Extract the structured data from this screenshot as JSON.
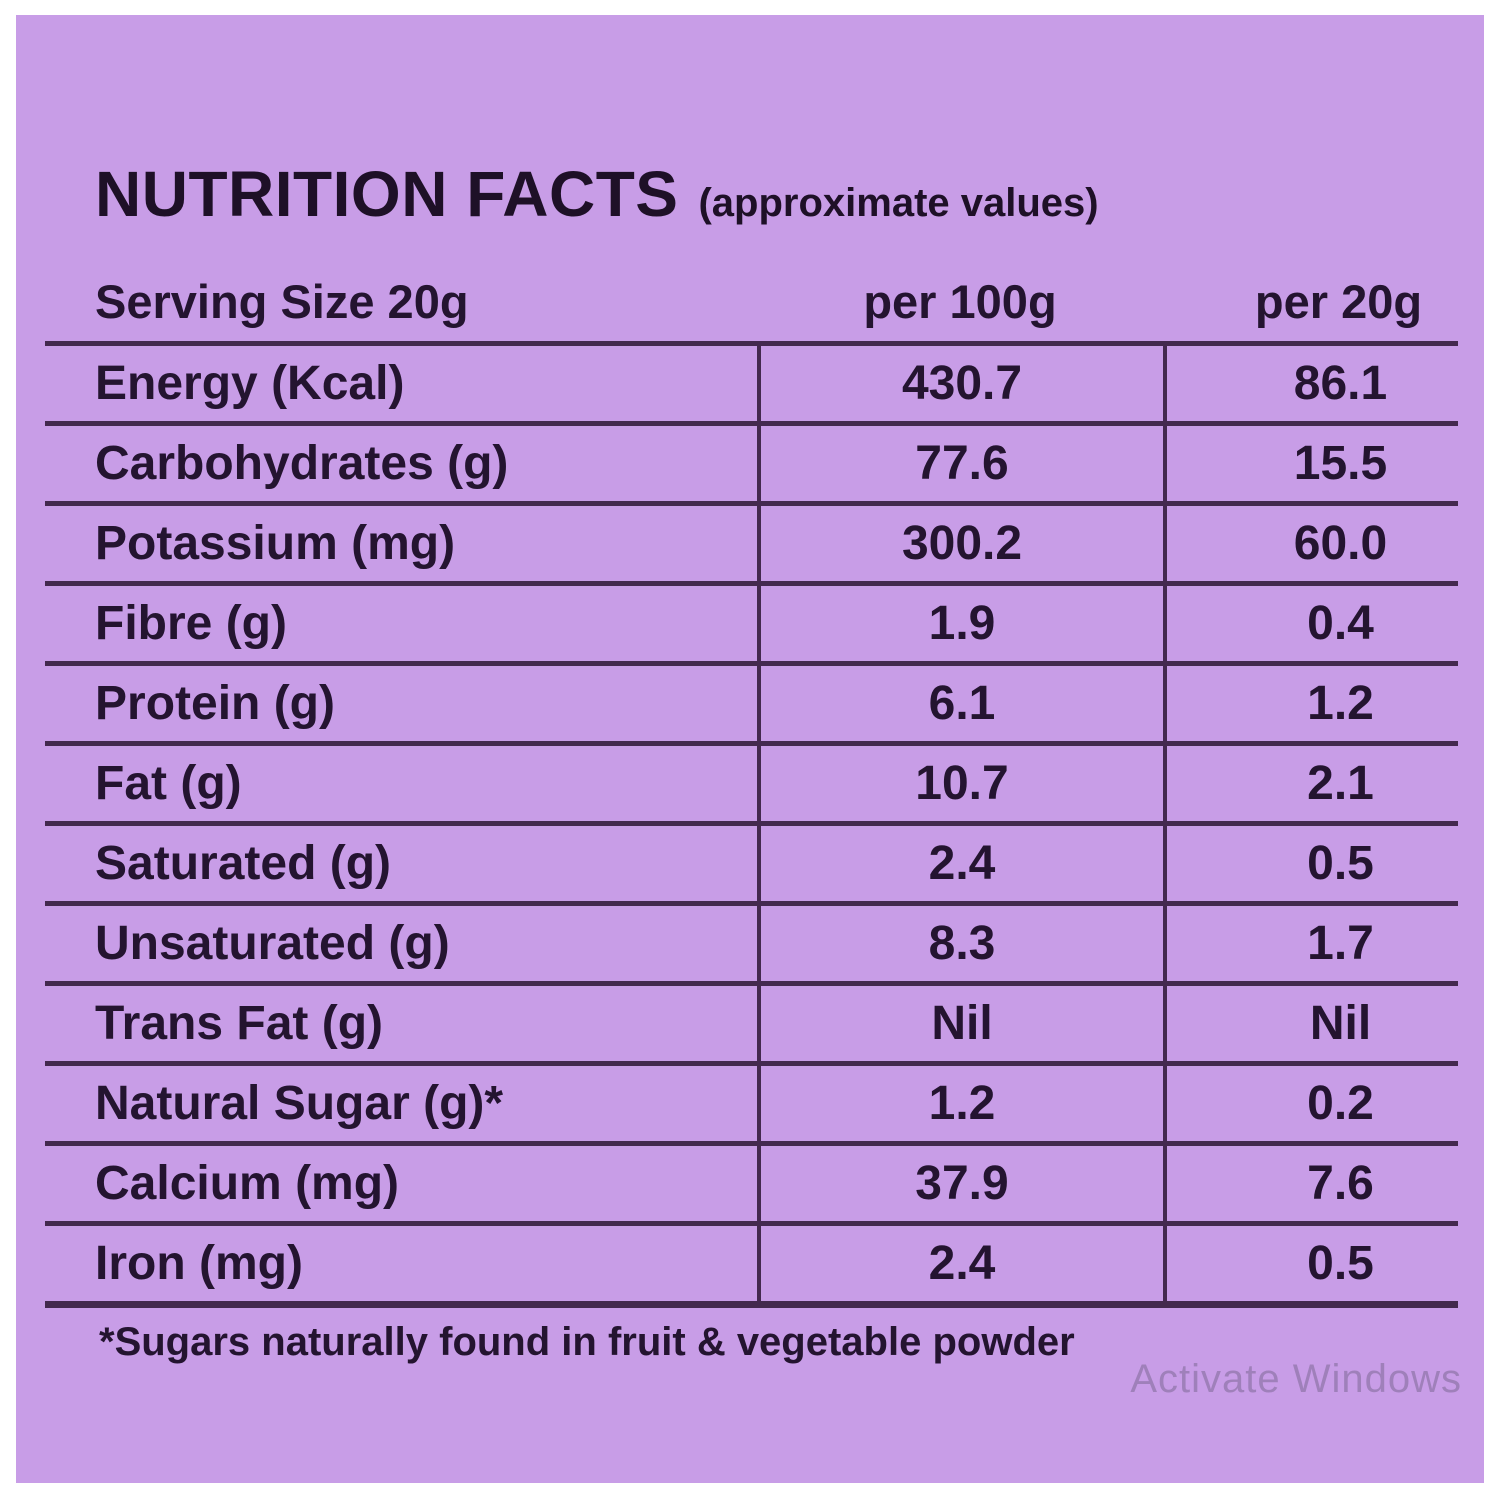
{
  "panel": {
    "title": "NUTRITION FACTS",
    "subtitle": "(approximate values)",
    "footnote": "*Sugars naturally found in fruit & vegetable powder",
    "watermark": "Activate Windows",
    "colors": {
      "page_border": "#ffffff",
      "card_background": "#c89de7",
      "rule_line": "#43294e",
      "text": "#241430",
      "watermark_text": "#8a7aa0"
    }
  },
  "table": {
    "header": {
      "serving": "Serving Size 20g",
      "per100": "per 100g",
      "per20": "per 20g"
    },
    "rows": [
      {
        "label": "Energy (Kcal)",
        "per100": "430.7",
        "per20": "86.1"
      },
      {
        "label": "Carbohydrates (g)",
        "per100": "77.6",
        "per20": "15.5"
      },
      {
        "label": "Potassium (mg)",
        "per100": "300.2",
        "per20": "60.0"
      },
      {
        "label": "Fibre (g)",
        "per100": "1.9",
        "per20": "0.4"
      },
      {
        "label": "Protein (g)",
        "per100": "6.1",
        "per20": "1.2"
      },
      {
        "label": "Fat (g)",
        "per100": "10.7",
        "per20": "2.1"
      },
      {
        "label": "Saturated (g)",
        "per100": "2.4",
        "per20": "0.5"
      },
      {
        "label": "Unsaturated (g)",
        "per100": "8.3",
        "per20": "1.7"
      },
      {
        "label": "Trans Fat (g)",
        "per100": "Nil",
        "per20": "Nil"
      },
      {
        "label": "Natural Sugar (g)*",
        "per100": "1.2",
        "per20": "0.2"
      },
      {
        "label": "Calcium (mg)",
        "per100": "37.9",
        "per20": "7.6"
      },
      {
        "label": "Iron (mg)",
        "per100": "2.4",
        "per20": "0.5"
      }
    ]
  }
}
